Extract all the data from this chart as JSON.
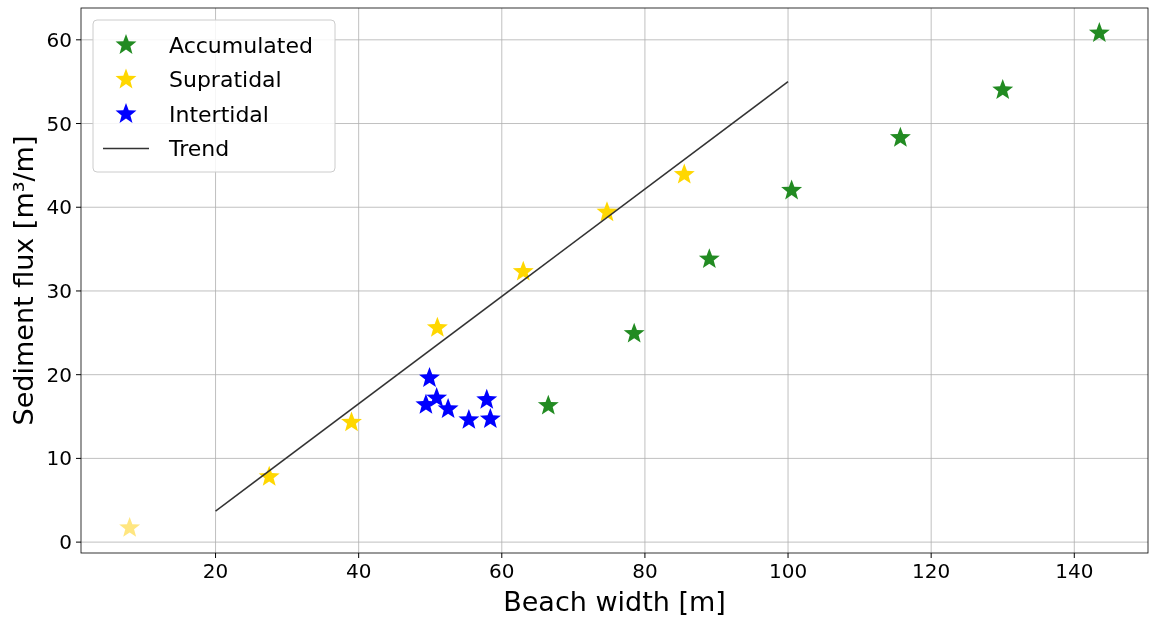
{
  "chart_data": {
    "type": "scatter",
    "xlabel": "Beach width [m]",
    "ylabel": "Sediment flux [m³/m]",
    "xlim": [
      1.2,
      150.3
    ],
    "xticks": [
      20,
      40,
      60,
      80,
      100,
      120,
      140
    ],
    "ylim": [
      -1.3,
      63.8
    ],
    "yticks": [
      0,
      10,
      20,
      30,
      40,
      50,
      60
    ],
    "grid": true,
    "legend": "top left",
    "series": [
      {
        "name": "Accumulated",
        "color": "#228b22",
        "marker": "star",
        "x": [
          66.5,
          78.5,
          89,
          100.5,
          115.7,
          130,
          143.5
        ],
        "values": [
          16.3,
          24.9,
          33.8,
          42,
          48.3,
          54,
          60.8
        ]
      },
      {
        "name": "Supratidal",
        "color": "#ffd700",
        "marker": "star",
        "colors": [
          "#ffe680",
          "#ffd700",
          "#ffd700",
          "#ffd700",
          "#ffd700",
          "#ffd700",
          "#ffd700"
        ],
        "x": [
          8,
          27.5,
          39,
          51,
          63,
          74.7,
          85.5
        ],
        "values": [
          1.7,
          7.8,
          14.3,
          25.6,
          32.3,
          39.4,
          43.9
        ]
      },
      {
        "name": "Intertidal",
        "color": "#0000ff",
        "marker": "star",
        "x": [
          49.4,
          49.9,
          50.9,
          52.5,
          55.4,
          57.9,
          58.4
        ],
        "values": [
          16.4,
          19.6,
          17.2,
          15.9,
          14.6,
          17.0,
          14.7
        ]
      },
      {
        "name": "Trend",
        "type": "line",
        "color": "#333333",
        "marker": "none",
        "x": [
          20,
          100
        ],
        "values": [
          3.7,
          55
        ]
      }
    ]
  }
}
